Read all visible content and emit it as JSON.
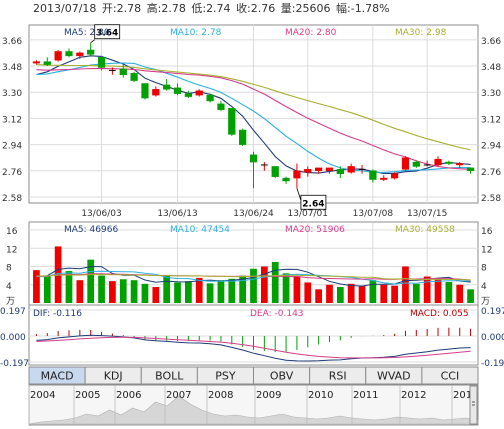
{
  "header": {
    "date": "2013/07/18",
    "open_label": "开:",
    "open": "2.78",
    "high_label": "高:",
    "high": "2.78",
    "low_label": "低:",
    "low": "2.74",
    "close_label": "收:",
    "close": "2.76",
    "volume_label": "量:",
    "volume": "25606",
    "change_label": "幅:",
    "change": "-1.78%"
  },
  "chart_data": [
    {
      "type": "candlestick",
      "panel": "price",
      "ylim": [
        2.58,
        3.7
      ],
      "y_ticks": [
        "3.66",
        "3.48",
        "3.30",
        "3.12",
        "2.94",
        "2.76",
        "2.58"
      ],
      "y_tick_values": [
        3.66,
        3.48,
        3.3,
        3.12,
        2.94,
        2.76,
        2.58
      ],
      "x_tick_labels": [
        "13/06/03",
        "13/06/13",
        "13/06/24",
        "13/07/01",
        "13/07/08",
        "13/07/15"
      ],
      "x_tick_index": [
        6,
        13,
        20,
        25,
        31,
        36
      ],
      "legend": [
        {
          "label": "MA5: 2.80",
          "color": "#1e3c78"
        },
        {
          "label": "MA10: 2.78",
          "color": "#2ab0e0"
        },
        {
          "label": "MA20: 2.80",
          "color": "#d83c8a"
        },
        {
          "label": "MA30: 2.98",
          "color": "#a8b030"
        }
      ],
      "annotations": [
        {
          "text": "3.64",
          "index": 5,
          "value": 3.64
        },
        {
          "text": "2.64",
          "index": 24,
          "value": 2.64
        }
      ],
      "candles": [
        {
          "o": 3.5,
          "h": 3.52,
          "l": 3.49,
          "c": 3.51
        },
        {
          "o": 3.51,
          "h": 3.54,
          "l": 3.48,
          "c": 3.49
        },
        {
          "o": 3.52,
          "h": 3.59,
          "l": 3.51,
          "c": 3.58
        },
        {
          "o": 3.58,
          "h": 3.6,
          "l": 3.54,
          "c": 3.55
        },
        {
          "o": 3.55,
          "h": 3.58,
          "l": 3.53,
          "c": 3.57
        },
        {
          "o": 3.59,
          "h": 3.64,
          "l": 3.55,
          "c": 3.56
        },
        {
          "o": 3.54,
          "h": 3.55,
          "l": 3.45,
          "c": 3.47
        },
        {
          "o": 3.45,
          "h": 3.47,
          "l": 3.42,
          "c": 3.45
        },
        {
          "o": 3.46,
          "h": 3.49,
          "l": 3.4,
          "c": 3.42
        },
        {
          "o": 3.43,
          "h": 3.44,
          "l": 3.37,
          "c": 3.38
        },
        {
          "o": 3.36,
          "h": 3.36,
          "l": 3.25,
          "c": 3.26
        },
        {
          "o": 3.28,
          "h": 3.34,
          "l": 3.27,
          "c": 3.32
        },
        {
          "o": 3.35,
          "h": 3.39,
          "l": 3.31,
          "c": 3.32
        },
        {
          "o": 3.33,
          "h": 3.36,
          "l": 3.28,
          "c": 3.29
        },
        {
          "o": 3.29,
          "h": 3.31,
          "l": 3.26,
          "c": 3.27
        },
        {
          "o": 3.28,
          "h": 3.32,
          "l": 3.27,
          "c": 3.31
        },
        {
          "o": 3.28,
          "h": 3.29,
          "l": 3.23,
          "c": 3.24
        },
        {
          "o": 3.22,
          "h": 3.24,
          "l": 3.17,
          "c": 3.18
        },
        {
          "o": 3.19,
          "h": 3.19,
          "l": 3.0,
          "c": 3.01
        },
        {
          "o": 3.04,
          "h": 3.05,
          "l": 2.93,
          "c": 2.94
        },
        {
          "o": 2.87,
          "h": 2.89,
          "l": 2.64,
          "c": 2.82
        },
        {
          "o": 2.8,
          "h": 2.82,
          "l": 2.76,
          "c": 2.8
        },
        {
          "o": 2.79,
          "h": 2.79,
          "l": 2.71,
          "c": 2.72
        },
        {
          "o": 2.71,
          "h": 2.72,
          "l": 2.67,
          "c": 2.69
        },
        {
          "o": 2.71,
          "h": 2.81,
          "l": 2.64,
          "c": 2.76
        },
        {
          "o": 2.75,
          "h": 2.79,
          "l": 2.72,
          "c": 2.77
        },
        {
          "o": 2.76,
          "h": 2.78,
          "l": 2.74,
          "c": 2.78
        },
        {
          "o": 2.76,
          "h": 2.78,
          "l": 2.74,
          "c": 2.78
        },
        {
          "o": 2.77,
          "h": 2.79,
          "l": 2.71,
          "c": 2.74
        },
        {
          "o": 2.75,
          "h": 2.81,
          "l": 2.74,
          "c": 2.79
        },
        {
          "o": 2.77,
          "h": 2.8,
          "l": 2.74,
          "c": 2.77
        },
        {
          "o": 2.76,
          "h": 2.77,
          "l": 2.68,
          "c": 2.7
        },
        {
          "o": 2.7,
          "h": 2.73,
          "l": 2.69,
          "c": 2.71
        },
        {
          "o": 2.71,
          "h": 2.75,
          "l": 2.7,
          "c": 2.74
        },
        {
          "o": 2.77,
          "h": 2.86,
          "l": 2.76,
          "c": 2.85
        },
        {
          "o": 2.82,
          "h": 2.83,
          "l": 2.78,
          "c": 2.79
        },
        {
          "o": 2.8,
          "h": 2.83,
          "l": 2.79,
          "c": 2.8
        },
        {
          "o": 2.8,
          "h": 2.86,
          "l": 2.79,
          "c": 2.84
        },
        {
          "o": 2.82,
          "h": 2.83,
          "l": 2.8,
          "c": 2.81
        },
        {
          "o": 2.8,
          "h": 2.82,
          "l": 2.78,
          "c": 2.81
        },
        {
          "o": 2.78,
          "h": 2.78,
          "l": 2.74,
          "c": 2.76
        }
      ]
    },
    {
      "type": "bar",
      "panel": "volume",
      "ylim": [
        0,
        16
      ],
      "y_ticks": [
        "16",
        "12",
        "8",
        "4"
      ],
      "y_tick_values": [
        16,
        12,
        8,
        4
      ],
      "unit_label": "万",
      "unit_label2": "万",
      "legend": [
        {
          "label": "MA5: 46966",
          "color": "#1e3c78"
        },
        {
          "label": "MA10: 47454",
          "color": "#2ab0e0"
        },
        {
          "label": "MA20: 51906",
          "color": "#d83c8a"
        },
        {
          "label": "MA30: 49558",
          "color": "#a8b030"
        }
      ],
      "values": [
        7.2,
        6.0,
        12.4,
        7.0,
        5.0,
        9.5,
        6.0,
        4.8,
        5.2,
        5.0,
        4.2,
        3.5,
        6.0,
        4.5,
        4.8,
        5.5,
        4.3,
        5.0,
        5.3,
        6.0,
        7.5,
        8.0,
        9.0,
        6.5,
        5.8,
        4.5,
        3.0,
        4.0,
        3.5,
        4.2,
        3.8,
        5.0,
        4.0,
        3.8,
        8.0,
        4.2,
        5.8,
        5.5,
        4.6,
        4.0,
        3.0
      ]
    },
    {
      "type": "line",
      "panel": "macd",
      "ylim": [
        -0.197,
        0.197
      ],
      "y_ticks": [
        "0.197",
        "0.000",
        "-0.197"
      ],
      "y_tick_values": [
        0.197,
        0.0,
        -0.197
      ],
      "legend": [
        {
          "label": "DIF: -0.116",
          "color": "#1e3c78"
        },
        {
          "label": "DEA: -0.143",
          "color": "#d83c8a"
        },
        {
          "label": "MACD: 0.055",
          "color": "#c00000"
        }
      ]
    }
  ],
  "indicator_tabs": [
    "MACD",
    "KDJ",
    "BOLL",
    "PSY",
    "OBV",
    "RSI",
    "WVAD",
    "CCI"
  ],
  "indicator_tab_selected": "MACD",
  "timeline": {
    "years": [
      "2004",
      "2005",
      "2006",
      "2007",
      "2008",
      "2009",
      "2010",
      "2011",
      "2012",
      "201"
    ]
  },
  "colors": {
    "up": "#ee0000",
    "down": "#00a000",
    "frame": "#8c8c8c",
    "grid": "#dcdcdc",
    "label": "#333333"
  }
}
